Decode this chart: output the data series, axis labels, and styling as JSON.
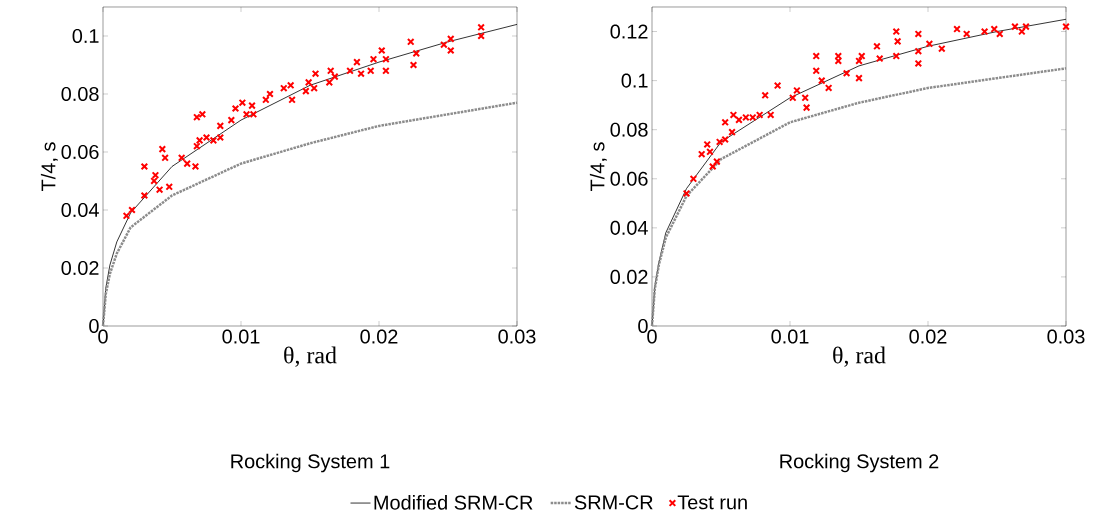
{
  "chart_data": [
    {
      "type": "line",
      "title": "Rocking System 1",
      "xlabel": "θ, rad",
      "ylabel": "T/4, s",
      "xlim": [
        0,
        0.03
      ],
      "ylim": [
        0,
        0.11
      ],
      "xticks": [
        0,
        0.01,
        0.02,
        0.03
      ],
      "yticks": [
        0,
        0.02,
        0.04,
        0.06,
        0.08,
        0.1
      ],
      "legend": "bottom",
      "series": [
        {
          "name": "Modified SRM-CR",
          "color": "#000000",
          "line_style": "solid",
          "x": [
            0,
            0.0002,
            0.0005,
            0.001,
            0.002,
            0.005,
            0.01,
            0.015,
            0.02,
            0.025,
            0.03
          ],
          "values": [
            0,
            0.013,
            0.021,
            0.029,
            0.039,
            0.055,
            0.071,
            0.083,
            0.091,
            0.098,
            0.104
          ]
        },
        {
          "name": "SRM-CR",
          "color": "#8c8c8c",
          "line_style": "dotted",
          "x": [
            0,
            0.0002,
            0.0005,
            0.001,
            0.002,
            0.005,
            0.01,
            0.015,
            0.02,
            0.025,
            0.03
          ],
          "values": [
            0,
            0.011,
            0.018,
            0.025,
            0.034,
            0.045,
            0.056,
            0.063,
            0.069,
            0.073,
            0.077
          ]
        },
        {
          "name": "Test run",
          "type": "scatter",
          "color": "#ff0000",
          "marker": "cross",
          "x": [
            0.0017,
            0.0021,
            0.003,
            0.003,
            0.0037,
            0.0038,
            0.0041,
            0.0048,
            0.0043,
            0.0045,
            0.0057,
            0.0061,
            0.0067,
            0.0068,
            0.0072,
            0.0068,
            0.007,
            0.0075,
            0.008,
            0.0085,
            0.0085,
            0.0093,
            0.0096,
            0.0101,
            0.0104,
            0.0108,
            0.0109,
            0.0118,
            0.0121,
            0.0131,
            0.0136,
            0.0137,
            0.0147,
            0.0149,
            0.0153,
            0.0154,
            0.0164,
            0.0165,
            0.0168,
            0.0179,
            0.0184,
            0.0187,
            0.0194,
            0.0196,
            0.0202,
            0.0205,
            0.0205,
            0.0223,
            0.0227,
            0.0225,
            0.0247,
            0.0252,
            0.0252,
            0.0274,
            0.0274
          ],
          "values": [
            0.038,
            0.04,
            0.045,
            0.055,
            0.05,
            0.052,
            0.047,
            0.048,
            0.061,
            0.058,
            0.058,
            0.056,
            0.055,
            0.072,
            0.073,
            0.062,
            0.064,
            0.065,
            0.064,
            0.069,
            0.065,
            0.071,
            0.075,
            0.077,
            0.073,
            0.076,
            0.073,
            0.078,
            0.08,
            0.082,
            0.083,
            0.078,
            0.081,
            0.084,
            0.082,
            0.087,
            0.084,
            0.088,
            0.086,
            0.088,
            0.091,
            0.087,
            0.088,
            0.092,
            0.095,
            0.092,
            0.088,
            0.098,
            0.094,
            0.09,
            0.097,
            0.099,
            0.095,
            0.103,
            0.1
          ]
        }
      ]
    },
    {
      "type": "line",
      "title": "Rocking System 2",
      "xlabel": "θ, rad",
      "ylabel": "T/4, s",
      "xlim": [
        0,
        0.03
      ],
      "ylim": [
        0,
        0.13
      ],
      "xticks": [
        0,
        0.01,
        0.02,
        0.03
      ],
      "yticks": [
        0,
        0.02,
        0.04,
        0.06,
        0.08,
        0.1,
        0.12
      ],
      "series": [
        {
          "color": "#000000",
          "line_style": "solid",
          "x": [
            0,
            0.0002,
            0.0005,
            0.001,
            0.0025,
            0.005,
            0.01,
            0.015,
            0.02,
            0.025,
            0.03
          ],
          "values": [
            0,
            0.016,
            0.026,
            0.038,
            0.056,
            0.075,
            0.093,
            0.106,
            0.114,
            0.12,
            0.125
          ]
        },
        {
          "color": "#8c8c8c",
          "line_style": "dotted",
          "x": [
            0,
            0.0002,
            0.0005,
            0.001,
            0.0025,
            0.005,
            0.01,
            0.015,
            0.02,
            0.025,
            0.03
          ],
          "values": [
            0,
            0.015,
            0.025,
            0.036,
            0.053,
            0.068,
            0.083,
            0.091,
            0.097,
            0.101,
            0.105
          ]
        },
        {
          "type": "scatter",
          "color": "#ff0000",
          "marker": "cross",
          "x": [
            0.0025,
            0.003,
            0.0036,
            0.004,
            0.0042,
            0.0044,
            0.0047,
            0.0049,
            0.0053,
            0.0058,
            0.0053,
            0.0059,
            0.0063,
            0.0068,
            0.0073,
            0.0078,
            0.0082,
            0.0086,
            0.0091,
            0.0102,
            0.0105,
            0.0111,
            0.0112,
            0.0119,
            0.0119,
            0.0123,
            0.0128,
            0.0135,
            0.0135,
            0.0141,
            0.015,
            0.015,
            0.0152,
            0.0163,
            0.0165,
            0.0177,
            0.0178,
            0.0177,
            0.0193,
            0.0193,
            0.0193,
            0.0201,
            0.021,
            0.0221,
            0.0228,
            0.0241,
            0.0248,
            0.0252,
            0.0263,
            0.0268,
            0.0271,
            0.03
          ],
          "values": [
            0.054,
            0.06,
            0.07,
            0.074,
            0.071,
            0.065,
            0.067,
            0.075,
            0.076,
            0.079,
            0.083,
            0.086,
            0.084,
            0.085,
            0.085,
            0.086,
            0.094,
            0.086,
            0.098,
            0.093,
            0.096,
            0.093,
            0.089,
            0.11,
            0.104,
            0.1,
            0.097,
            0.11,
            0.108,
            0.103,
            0.101,
            0.108,
            0.11,
            0.114,
            0.109,
            0.12,
            0.116,
            0.11,
            0.119,
            0.112,
            0.107,
            0.115,
            0.113,
            0.121,
            0.119,
            0.12,
            0.121,
            0.119,
            0.122,
            0.12,
            0.122,
            0.122
          ]
        }
      ]
    }
  ]
}
